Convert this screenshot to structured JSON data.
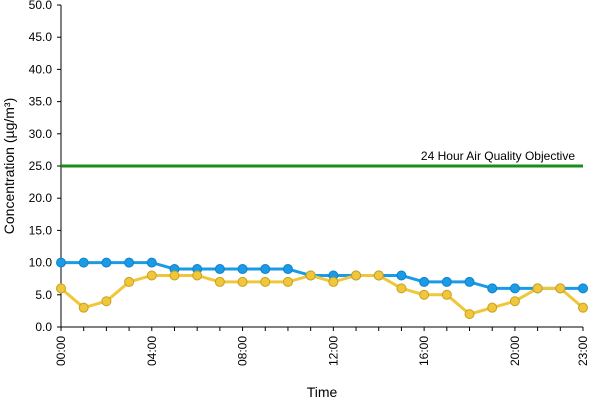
{
  "chart_data": {
    "type": "line",
    "xlabel": "Time",
    "ylabel": "Concentration (µg/m³)",
    "ylim": [
      0,
      50
    ],
    "y_ticks": [
      "0.0",
      "5.0",
      "10.0",
      "15.0",
      "20.0",
      "25.0",
      "30.0",
      "35.0",
      "40.0",
      "45.0",
      "50.0"
    ],
    "x_tick_labels": [
      "00:00",
      "04:00",
      "08:00",
      "12:00",
      "16:00",
      "20:00",
      "23:00"
    ],
    "x_tick_hours": [
      0,
      4,
      8,
      12,
      16,
      20,
      23
    ],
    "x_hours": [
      0,
      1,
      2,
      3,
      4,
      5,
      6,
      7,
      8,
      9,
      10,
      11,
      12,
      13,
      14,
      15,
      16,
      17,
      18,
      19,
      20,
      21,
      22,
      23
    ],
    "series": [
      {
        "color": "#1a9be8",
        "values": [
          10,
          10,
          10,
          10,
          10,
          9,
          9,
          9,
          9,
          9,
          9,
          8,
          8,
          8,
          8,
          8,
          7,
          7,
          7,
          6,
          6,
          6,
          6,
          6
        ]
      },
      {
        "color": "#f0c73a",
        "values": [
          6,
          3,
          4,
          7,
          8,
          8,
          8,
          7,
          7,
          7,
          7,
          8,
          7,
          8,
          8,
          6,
          5,
          5,
          2,
          3,
          4,
          6,
          6,
          3
        ]
      }
    ],
    "objective": {
      "value": 25,
      "label": "24 Hour Air Quality Objective",
      "color": "#1e8b1e"
    },
    "grid": false,
    "legend": "none"
  }
}
